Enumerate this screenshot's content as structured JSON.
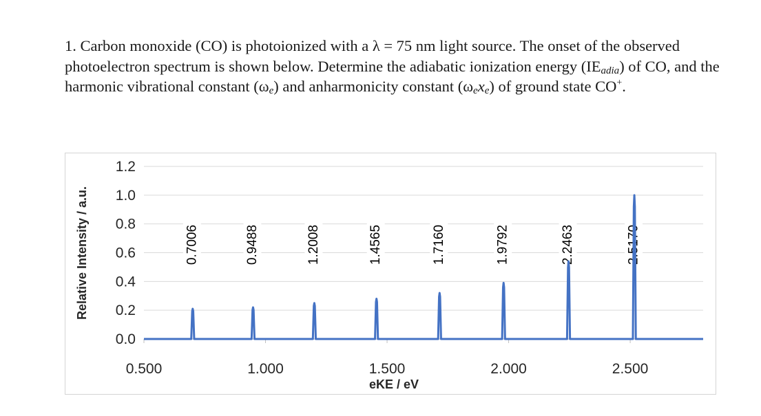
{
  "question": {
    "number": "1.",
    "part1": "Carbon monoxide (CO) is photoionized with a λ = 75 nm light source. The onset of the observed photoelectron spectrum is shown below. Determine the adiabatic ionization energy (IE",
    "sub_adia": "adia",
    "part2": ") of CO, and the harmonic vibrational constant (ω",
    "sub_e1": "e",
    "part3": ") and anharmonicity constant (ω",
    "sub_e2": "e",
    "mid_x": "x",
    "sub_e3": "e",
    "part4": ") of ground state CO",
    "sup_plus": "+",
    "end": "."
  },
  "chart_data": {
    "type": "line",
    "xlabel": "eKE / eV",
    "ylabel": "Relative Intensity / a.u.",
    "xlim": [
      0.5,
      2.8
    ],
    "ylim": [
      0.0,
      1.2
    ],
    "x_ticks": [
      0.5,
      1.0,
      1.5,
      2.0,
      2.5
    ],
    "x_tick_labels": [
      "0.500",
      "1.000",
      "1.500",
      "2.000",
      "2.500"
    ],
    "y_ticks": [
      0.0,
      0.2,
      0.4,
      0.6,
      0.8,
      1.0,
      1.2
    ],
    "y_tick_labels": [
      "0.0",
      "0.2",
      "0.4",
      "0.6",
      "0.8",
      "1.0",
      "1.2"
    ],
    "grid": "horizontal",
    "legend": "none",
    "series_color": "#4472c4",
    "peaks": [
      {
        "x": 0.7006,
        "y": 0.21,
        "label": "0.7006"
      },
      {
        "x": 0.9488,
        "y": 0.22,
        "label": "0.9488"
      },
      {
        "x": 1.2008,
        "y": 0.25,
        "label": "1.2008"
      },
      {
        "x": 1.4565,
        "y": 0.28,
        "label": "1.4565"
      },
      {
        "x": 1.716,
        "y": 0.32,
        "label": "1.7160"
      },
      {
        "x": 1.9792,
        "y": 0.39,
        "label": "1.9792"
      },
      {
        "x": 2.2463,
        "y": 0.54,
        "label": "2.2463"
      },
      {
        "x": 2.517,
        "y": 1.0,
        "label": "2.5170"
      }
    ]
  }
}
